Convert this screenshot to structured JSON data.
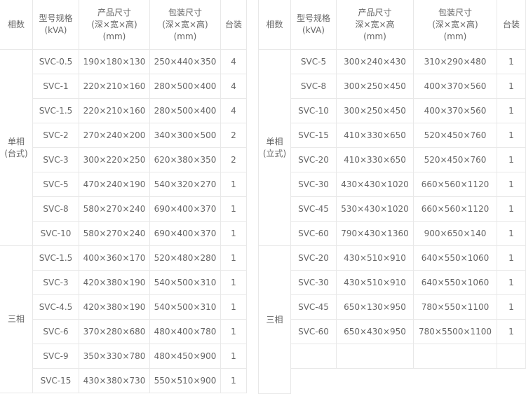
{
  "left_table": {
    "headers": [
      "相数",
      "型号规格\n(kVA)",
      "产品尺寸\n(深×宽×高)\n(mm)",
      "包装尺寸\n(深×宽×高)\n(mm)",
      "台装"
    ],
    "groups": [
      {
        "label": "单相\n(台式)",
        "rows": [
          [
            "SVC-0.5",
            "190×180×130",
            "250×440×350",
            "4"
          ],
          [
            "SVC-1",
            "220×210×160",
            "280×500×400",
            "4"
          ],
          [
            "SVC-1.5",
            "220×210×160",
            "280×500×400",
            "4"
          ],
          [
            "SVC-2",
            "270×240×200",
            "340×300×500",
            "2"
          ],
          [
            "SVC-3",
            "300×220×250",
            "620×380×350",
            "2"
          ],
          [
            "SVC-5",
            "470×240×190",
            "540×320×270",
            "1"
          ],
          [
            "SVC-8",
            "580×270×240",
            "690×400×370",
            "1"
          ],
          [
            "SVC-10",
            "580×270×240",
            "690×400×370",
            "1"
          ]
        ]
      },
      {
        "label": "三相",
        "rows": [
          [
            "SVC-1.5",
            "400×360×170",
            "520×480×280",
            "1"
          ],
          [
            "SVC-3",
            "420×380×190",
            "540×500×310",
            "1"
          ],
          [
            "SVC-4.5",
            "420×380×190",
            "540×500×310",
            "1"
          ],
          [
            "SVC-6",
            "370×280×680",
            "480×400×780",
            "1"
          ],
          [
            "SVC-9",
            "350×330×780",
            "480×450×900",
            "1"
          ],
          [
            "SVC-15",
            "430×380×730",
            "550×510×900",
            "1"
          ]
        ]
      }
    ]
  },
  "right_table": {
    "headers": [
      "相数",
      "型号规格\n(kVA)",
      "产品尺寸\n深×宽×高\n(mm)",
      "包装尺寸\n(深×宽×高)\n(mm)",
      "台装"
    ],
    "groups": [
      {
        "label": "单相\n(立式)",
        "rows": [
          [
            "SVC-5",
            "300×240×430",
            "310×290×480",
            "1"
          ],
          [
            "SVC-8",
            "300×250×450",
            "400×370×560",
            "1"
          ],
          [
            "SVC-10",
            "300×250×450",
            "400×370×560",
            "1"
          ],
          [
            "SVC-15",
            "410×330×650",
            "520×450×760",
            "1"
          ],
          [
            "SVC-20",
            "410×330×650",
            "520×450×760",
            "1"
          ],
          [
            "SVC-30",
            "430×430×1020",
            "660×560×1120",
            "1"
          ],
          [
            "SVC-45",
            "530×430×1020",
            "660×560×1120",
            "1"
          ],
          [
            "SVC-60",
            "790×430×1360",
            "900×650×140",
            "1"
          ]
        ]
      },
      {
        "label": "三相",
        "rows": [
          [
            "SVC-20",
            "430×510×910",
            "640×550×1060",
            "1"
          ],
          [
            "SVC-30",
            "430×510×910",
            "640×550×1060",
            "1"
          ],
          [
            "SVC-45",
            "650×130×950",
            "780×550×1100",
            "1"
          ],
          [
            "SVC-60",
            "650×430×950",
            "780×5500×1100",
            "1"
          ],
          [
            "",
            "",
            "",
            ""
          ]
        ]
      }
    ]
  }
}
